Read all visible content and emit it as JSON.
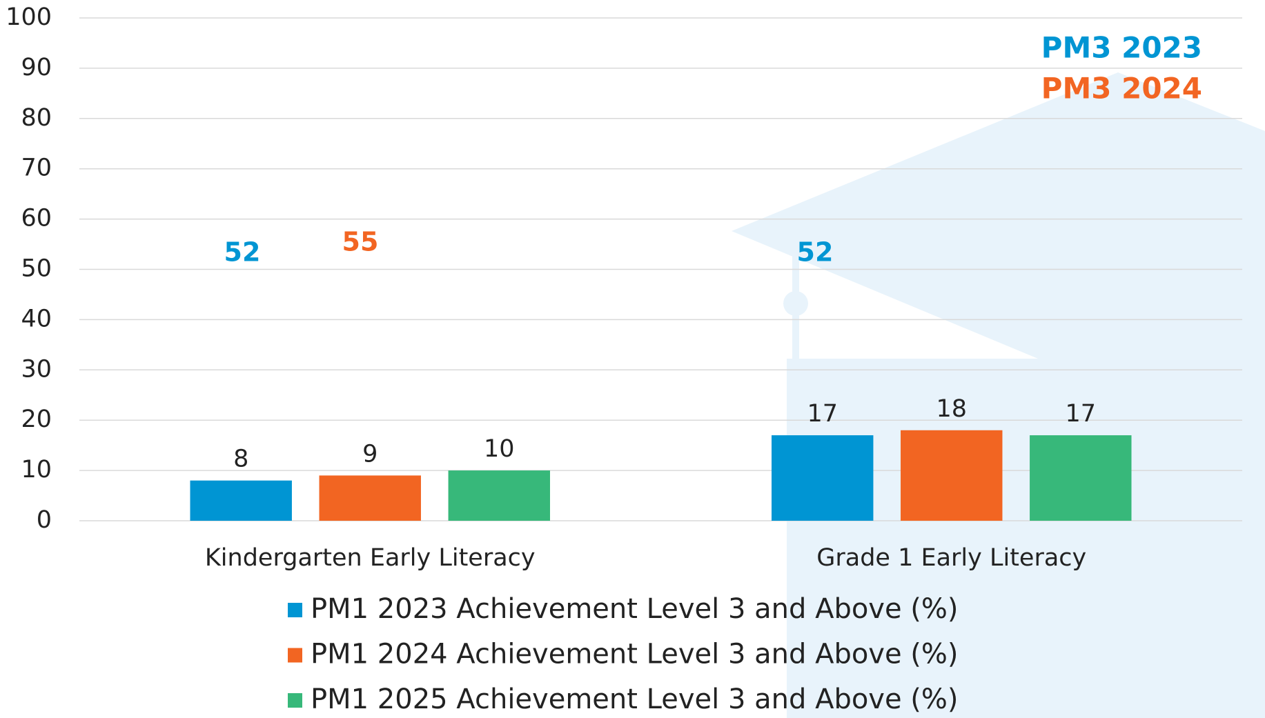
{
  "chart_data": {
    "type": "bar",
    "categories": [
      "Kindergarten Early Literacy",
      "Grade 1 Early Literacy"
    ],
    "series": [
      {
        "name": "PM1 2023 Achievement Level 3 and Above (%)",
        "color": "#0095d3",
        "values": [
          8,
          17
        ]
      },
      {
        "name": "PM1 2024 Achievement Level 3 and Above (%)",
        "color": "#f26522",
        "values": [
          9,
          18
        ]
      },
      {
        "name": "PM1 2025 Achievement Level 3 and Above (%)",
        "color": "#37b87a",
        "values": [
          10,
          17
        ]
      }
    ],
    "ylim": [
      0,
      100
    ],
    "yticks": [
      0,
      10,
      20,
      30,
      40,
      50,
      60,
      70,
      80,
      90,
      100
    ],
    "grid": true,
    "annotations": [
      {
        "text": "52",
        "color": "#0095d3"
      },
      {
        "text": "55",
        "color": "#f26522"
      },
      {
        "text": "52",
        "color": "#0095d3"
      },
      {
        "text": "PM3 2023",
        "color": "#0095d3"
      },
      {
        "text": "PM3 2024",
        "color": "#f26522"
      }
    ]
  }
}
